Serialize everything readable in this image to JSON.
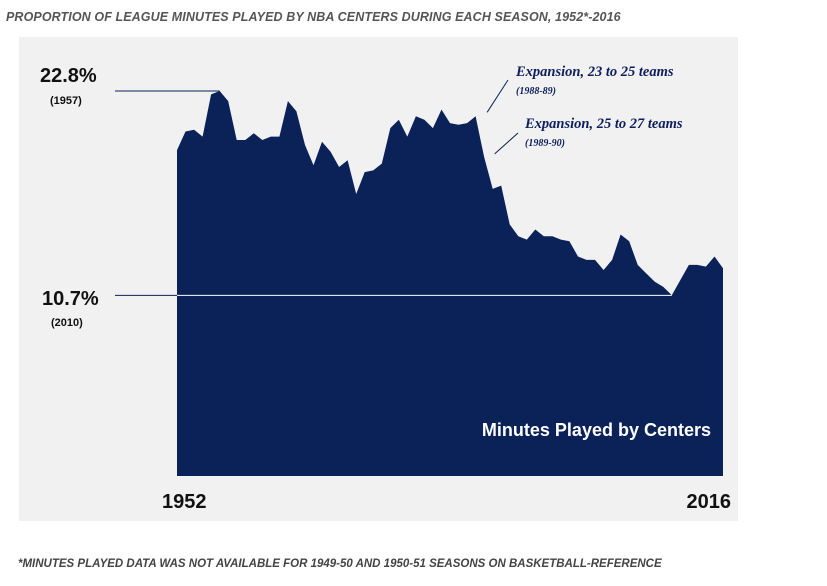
{
  "title": "PROPORTION OF LEAGUE MINUTES PLAYED BY NBA CENTERS DURING EACH SEASON, 1952*-2016",
  "footnote": "*MINUTES PLAYED DATA WAS NOT AVAILABLE FOR 1949-50 AND 1950-51 SEASONS ON BASKETBALL-REFERENCE",
  "colors": {
    "area": "#0b2258",
    "panel": "#f1f1f1",
    "annotation_text": "#0d1f5c"
  },
  "chart_data": {
    "type": "area",
    "title": "PROPORTION OF LEAGUE MINUTES PLAYED BY NBA CENTERS DURING EACH SEASON, 1952*-2016",
    "xlabel": "",
    "ylabel": "",
    "ylim": [
      0,
      24.6
    ],
    "x_ticks": [
      "1952",
      "2016"
    ],
    "series": [
      {
        "name": "Minutes Played by Centers",
        "x": [
          1952,
          1953,
          1954,
          1955,
          1956,
          1957,
          1958,
          1959,
          1960,
          1961,
          1962,
          1963,
          1964,
          1965,
          1966,
          1967,
          1968,
          1969,
          1970,
          1971,
          1972,
          1973,
          1974,
          1975,
          1976,
          1977,
          1978,
          1979,
          1980,
          1981,
          1982,
          1983,
          1984,
          1985,
          1986,
          1987,
          1988,
          1989,
          1990,
          1991,
          1992,
          1993,
          1994,
          1995,
          1996,
          1997,
          1998,
          1999,
          2000,
          2001,
          2002,
          2003,
          2004,
          2005,
          2006,
          2007,
          2008,
          2009,
          2010,
          2011,
          2012,
          2013,
          2014,
          2015,
          2016
        ],
        "values": [
          19.3,
          20.4,
          20.5,
          20.1,
          22.6,
          22.8,
          22.2,
          19.9,
          19.9,
          20.3,
          19.9,
          20.1,
          20.1,
          22.2,
          21.6,
          19.6,
          18.4,
          19.8,
          19.2,
          18.3,
          18.7,
          16.7,
          18.0,
          18.1,
          18.5,
          20.6,
          21.1,
          20.1,
          21.3,
          21.1,
          20.6,
          21.7,
          20.9,
          20.8,
          20.9,
          21.3,
          18.9,
          17.0,
          17.2,
          14.9,
          14.2,
          14.0,
          14.6,
          14.2,
          14.2,
          14.0,
          13.9,
          13.0,
          12.8,
          12.8,
          12.2,
          12.8,
          14.3,
          13.9,
          12.5,
          12.0,
          11.5,
          11.2,
          10.7,
          11.6,
          12.5,
          12.5,
          12.4,
          13.0,
          12.3
        ]
      }
    ],
    "annotations": [
      {
        "label": "22.8%",
        "sublabel": "(1957)",
        "x": 1957,
        "y": 22.8
      },
      {
        "label": "10.7%",
        "sublabel": "(2010)",
        "x": 2010,
        "y": 10.7
      },
      {
        "label": "Expansion, 23 to 25 teams",
        "sublabel": "(1988-89)",
        "x": 1988,
        "y": 21.3
      },
      {
        "label": "Expansion, 25 to 27 teams",
        "sublabel": "(1989-90)",
        "x": 1989,
        "y": 18.9
      }
    ],
    "series_label": "Minutes Played by Centers",
    "grid": false,
    "legend": "none"
  }
}
